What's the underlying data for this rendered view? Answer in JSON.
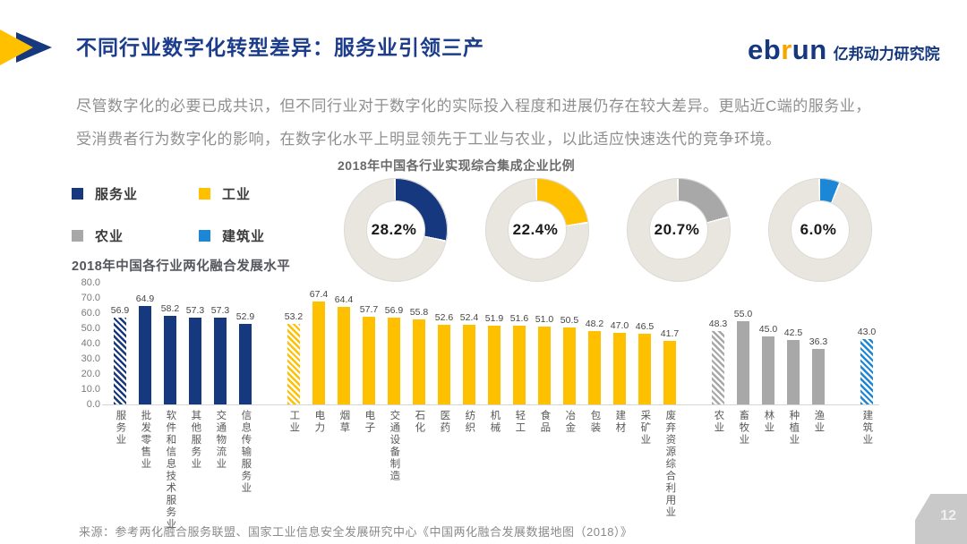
{
  "header": {
    "title": "不同行业数字化转型差异：服务业引领三产",
    "logo": {
      "part1": "eb",
      "part2": "r",
      "part3": "un",
      "cn": "亿邦动力研究院"
    }
  },
  "intro": {
    "line1": "尽管数字化的必要已成共识，但不同行业对于数字化的实际投入程度和进展仍存在较大差异。更贴近C端的服务业，",
    "line2": "受消费者行为数字化的影响，在数字化水平上明显领先于工业与农业，以此适应快速迭代的竞争环境。"
  },
  "colors": {
    "service_blue": "#16387E",
    "industry_yellow": "#FFC000",
    "agriculture_gray": "#A8A8A8",
    "construction_blue": "#1C87D6",
    "donut_rest": "#E9E6E0"
  },
  "legend": {
    "items": [
      {
        "label": "服务业",
        "color": "#16387E"
      },
      {
        "label": "工业",
        "color": "#FFC000"
      },
      {
        "label": "农业",
        "color": "#A8A8A8"
      },
      {
        "label": "建筑业",
        "color": "#1C87D6"
      }
    ]
  },
  "chart_data": [
    {
      "type": "pie",
      "subtype": "donut-set",
      "title": "2018年中国各行业实现综合集成企业比例",
      "rest_color": "#E9E6E0",
      "donuts": [
        {
          "label": "服务业",
          "value": 28.2,
          "display": "28.2%",
          "color": "#16387E"
        },
        {
          "label": "工业",
          "value": 22.4,
          "display": "22.4%",
          "color": "#FFC000"
        },
        {
          "label": "农业",
          "value": 20.7,
          "display": "20.7%",
          "color": "#A8A8A8"
        },
        {
          "label": "建筑业",
          "value": 6.0,
          "display": "6.0%",
          "color": "#1C87D6"
        }
      ]
    },
    {
      "type": "bar",
      "title": "2018年中国各行业两化融合发展水平",
      "ylim": [
        0,
        80
      ],
      "yticks": [
        "80.0",
        "70.0",
        "60.0",
        "50.0",
        "40.0",
        "30.0",
        "20.0",
        "10.0",
        "0.0"
      ],
      "grid": false,
      "note": "first bar of each group is hatched (sector average)",
      "groups": [
        {
          "name": "服务业",
          "color": "#16387E",
          "first_hatched": true,
          "categories": [
            "服务业",
            "批发零售业",
            "软件和信息技术服务业",
            "其他服务业",
            "交通物流业",
            "信息传输服务业"
          ],
          "values": [
            56.9,
            64.9,
            58.2,
            57.3,
            57.3,
            52.9
          ]
        },
        {
          "name": "工业",
          "color": "#FFC000",
          "first_hatched": true,
          "categories": [
            "工业",
            "电力",
            "烟草",
            "电子",
            "交通设备制造",
            "石化",
            "医药",
            "纺织",
            "机械",
            "轻工",
            "食品",
            "冶金",
            "包装",
            "建材",
            "采矿业",
            "废弃资源综合利用业"
          ],
          "values": [
            53.2,
            67.4,
            64.4,
            57.7,
            56.9,
            55.8,
            52.6,
            52.4,
            51.9,
            51.6,
            51.0,
            50.5,
            48.2,
            47.0,
            46.5,
            41.7
          ]
        },
        {
          "name": "农业",
          "color": "#A8A8A8",
          "first_hatched": true,
          "categories": [
            "农业",
            "畜牧业",
            "林业",
            "种植业",
            "渔业"
          ],
          "values": [
            48.3,
            55.0,
            45.0,
            42.5,
            36.3
          ]
        },
        {
          "name": "建筑业",
          "color": "#1C87D6",
          "first_hatched": true,
          "categories": [
            "建筑业"
          ],
          "values": [
            43.0
          ]
        }
      ]
    }
  ],
  "footer": {
    "source": "来源：参考两化融合服务联盟、国家工业信息安全发展研究中心《中国两化融合发展数据地图（2018）》",
    "page": "12"
  }
}
